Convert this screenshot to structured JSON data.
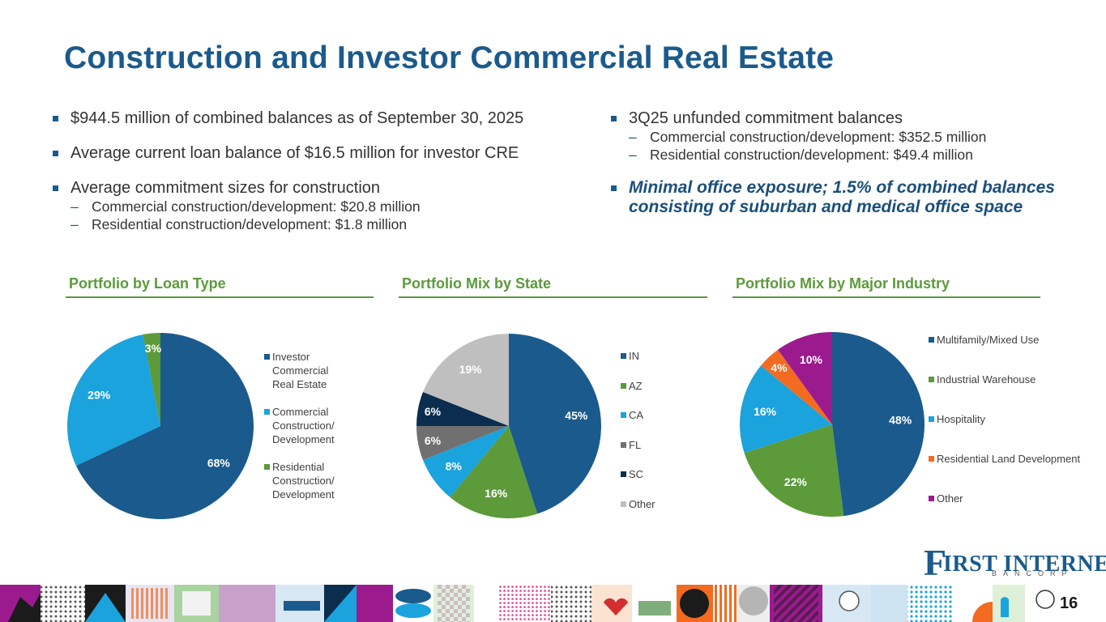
{
  "title": "Construction and Investor Commercial Real Estate",
  "left_bullets": [
    {
      "text": "$944.5 million of combined balances as of September 30, 2025"
    },
    {
      "text": "Average current loan balance of $16.5 million for investor CRE"
    },
    {
      "text": "Average commitment sizes for construction",
      "subs": [
        "Commercial construction/development: $20.8 million",
        "Residential construction/development: $1.8 million"
      ]
    }
  ],
  "right_bullets": [
    {
      "text": "3Q25 unfunded commitment balances",
      "subs": [
        "Commercial construction/development: $352.5 million",
        "Residential construction/development: $49.4 million"
      ]
    },
    {
      "text": "Minimal office exposure; 1.5% of combined balances consisting of suburban and medical office space"
    }
  ],
  "chart_data": [
    {
      "type": "pie",
      "title": "Portfolio by Loan Type",
      "categories": [
        "Investor Commercial Real Estate",
        "Commercial Construction/ Development",
        "Residential Construction/ Development"
      ],
      "legend_lines": [
        [
          "Investor",
          "Commercial",
          "Real Estate"
        ],
        [
          "Commercial",
          "Construction/",
          "Development"
        ],
        [
          "Residential",
          "Construction/",
          "Development"
        ]
      ],
      "values": [
        68,
        29,
        3
      ],
      "labels": [
        "68%",
        "29%",
        "3%"
      ],
      "colors": [
        "#1b5a8c",
        "#1aa3dd",
        "#5c9a3a"
      ],
      "legend": "right"
    },
    {
      "type": "pie",
      "title": "Portfolio Mix by State",
      "categories": [
        "IN",
        "AZ",
        "CA",
        "FL",
        "SC",
        "Other"
      ],
      "legend_lines": [
        [
          "IN"
        ],
        [
          "AZ"
        ],
        [
          "CA"
        ],
        [
          "FL"
        ],
        [
          "SC"
        ],
        [
          "Other"
        ]
      ],
      "values": [
        45,
        16,
        8,
        6,
        6,
        19
      ],
      "labels": [
        "45%",
        "16%",
        "8%",
        "6%",
        "6%",
        "19%"
      ],
      "colors": [
        "#1b5a8c",
        "#5c9a3a",
        "#1aa3dd",
        "#707070",
        "#0b2e4e",
        "#bfbfbf"
      ],
      "legend": "right"
    },
    {
      "type": "pie",
      "title": "Portfolio Mix by Major Industry",
      "categories": [
        "Multifamily/Mixed Use",
        "Industrial Warehouse",
        "Hospitality",
        "Residential Land Development",
        "Other"
      ],
      "legend_lines": [
        [
          "Multifamily/Mixed Use"
        ],
        [
          "Industrial Warehouse"
        ],
        [
          "Hospitality"
        ],
        [
          "Residential Land Development"
        ],
        [
          "Other"
        ]
      ],
      "values": [
        48,
        22,
        16,
        4,
        10
      ],
      "labels": [
        "48%",
        "22%",
        "16%",
        "4%",
        "10%"
      ],
      "colors": [
        "#1b5a8c",
        "#5c9a3a",
        "#1aa3dd",
        "#f26b21",
        "#9b1b8e"
      ],
      "legend": "right"
    }
  ],
  "logo": {
    "first": "F",
    "word": "IRST INTERNET",
    "sub": "BANCORP"
  },
  "page_number": "16"
}
